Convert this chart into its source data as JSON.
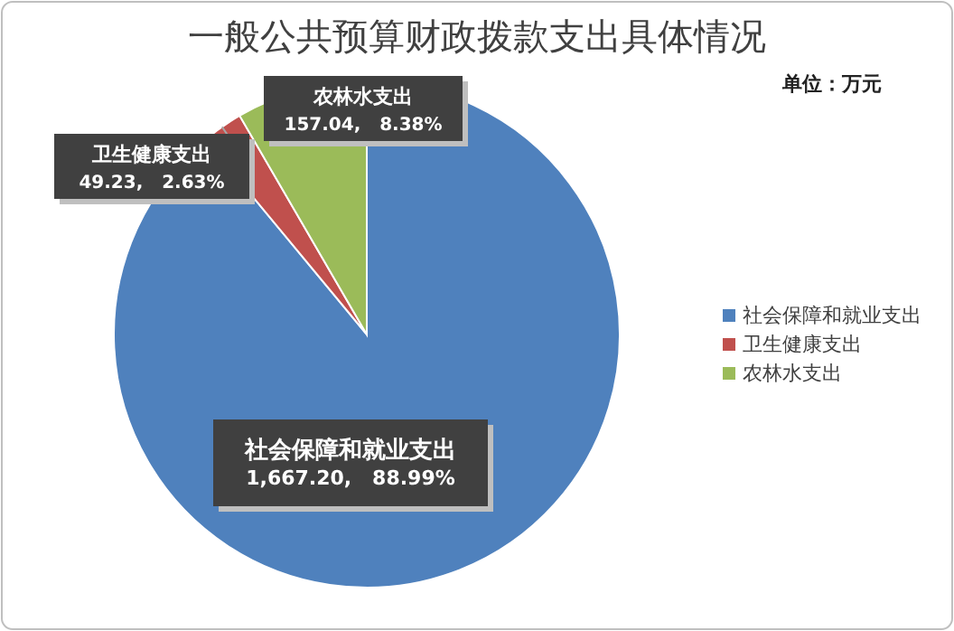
{
  "chart_data": {
    "type": "pie",
    "title": "一般公共预算财政拨款支出具体情况",
    "annotations": [
      "单位：万元"
    ],
    "categories": [
      "社会保障和就业支出",
      "卫生健康支出",
      "农林水支出"
    ],
    "values": [
      1667.2,
      49.23,
      157.04
    ],
    "value_labels": [
      "1,667.20,   88.99%",
      "49.23,   2.63%",
      "157.04,   8.38%"
    ],
    "colors": [
      "#4f81bd",
      "#c0504d",
      "#9bbb59"
    ],
    "legend": "right"
  }
}
